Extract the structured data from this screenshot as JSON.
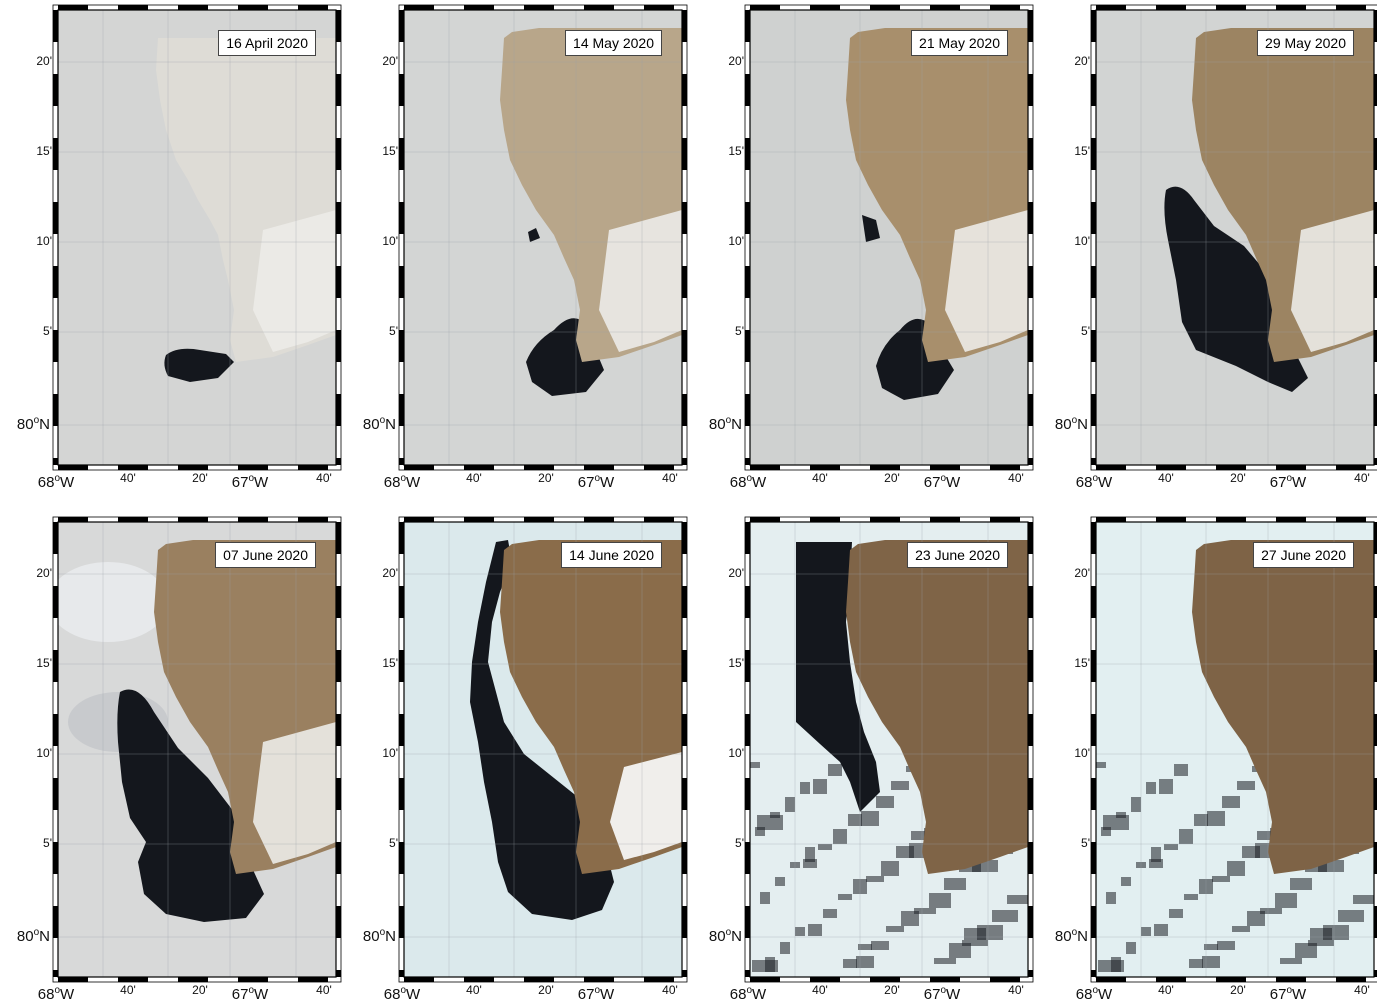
{
  "panels": [
    {
      "date": "16 April 2020",
      "stage": 0
    },
    {
      "date": "14 May 2020",
      "stage": 1
    },
    {
      "date": "21 May 2020",
      "stage": 2
    },
    {
      "date": "29 May 2020",
      "stage": 3
    },
    {
      "date": "07 June 2020",
      "stage": 4
    },
    {
      "date": "14 June 2020",
      "stage": 5
    },
    {
      "date": "23 June 2020",
      "stage": 6
    },
    {
      "date": "27 June 2020",
      "stage": 7
    }
  ],
  "axes": {
    "lat_ticks": [
      "20'",
      "15'",
      "10'",
      "5'"
    ],
    "lat_main": {
      "deg": "80",
      "o": "o",
      "hemi": "N"
    },
    "lon_left": {
      "deg": "68",
      "o": "o",
      "hemi": "W"
    },
    "lon_mid": {
      "deg": "67",
      "o": "o",
      "hemi": "W"
    },
    "lon_ticks": [
      "40'",
      "20'",
      "40'"
    ]
  },
  "colors": {
    "sea_ice": "#d3d4d3",
    "land_ice": "#e6e6e2",
    "land_bare": "#8a7050",
    "open_water": "#14171d",
    "ice_bright": "#dcecef",
    "grid": "#9aa0a8"
  }
}
